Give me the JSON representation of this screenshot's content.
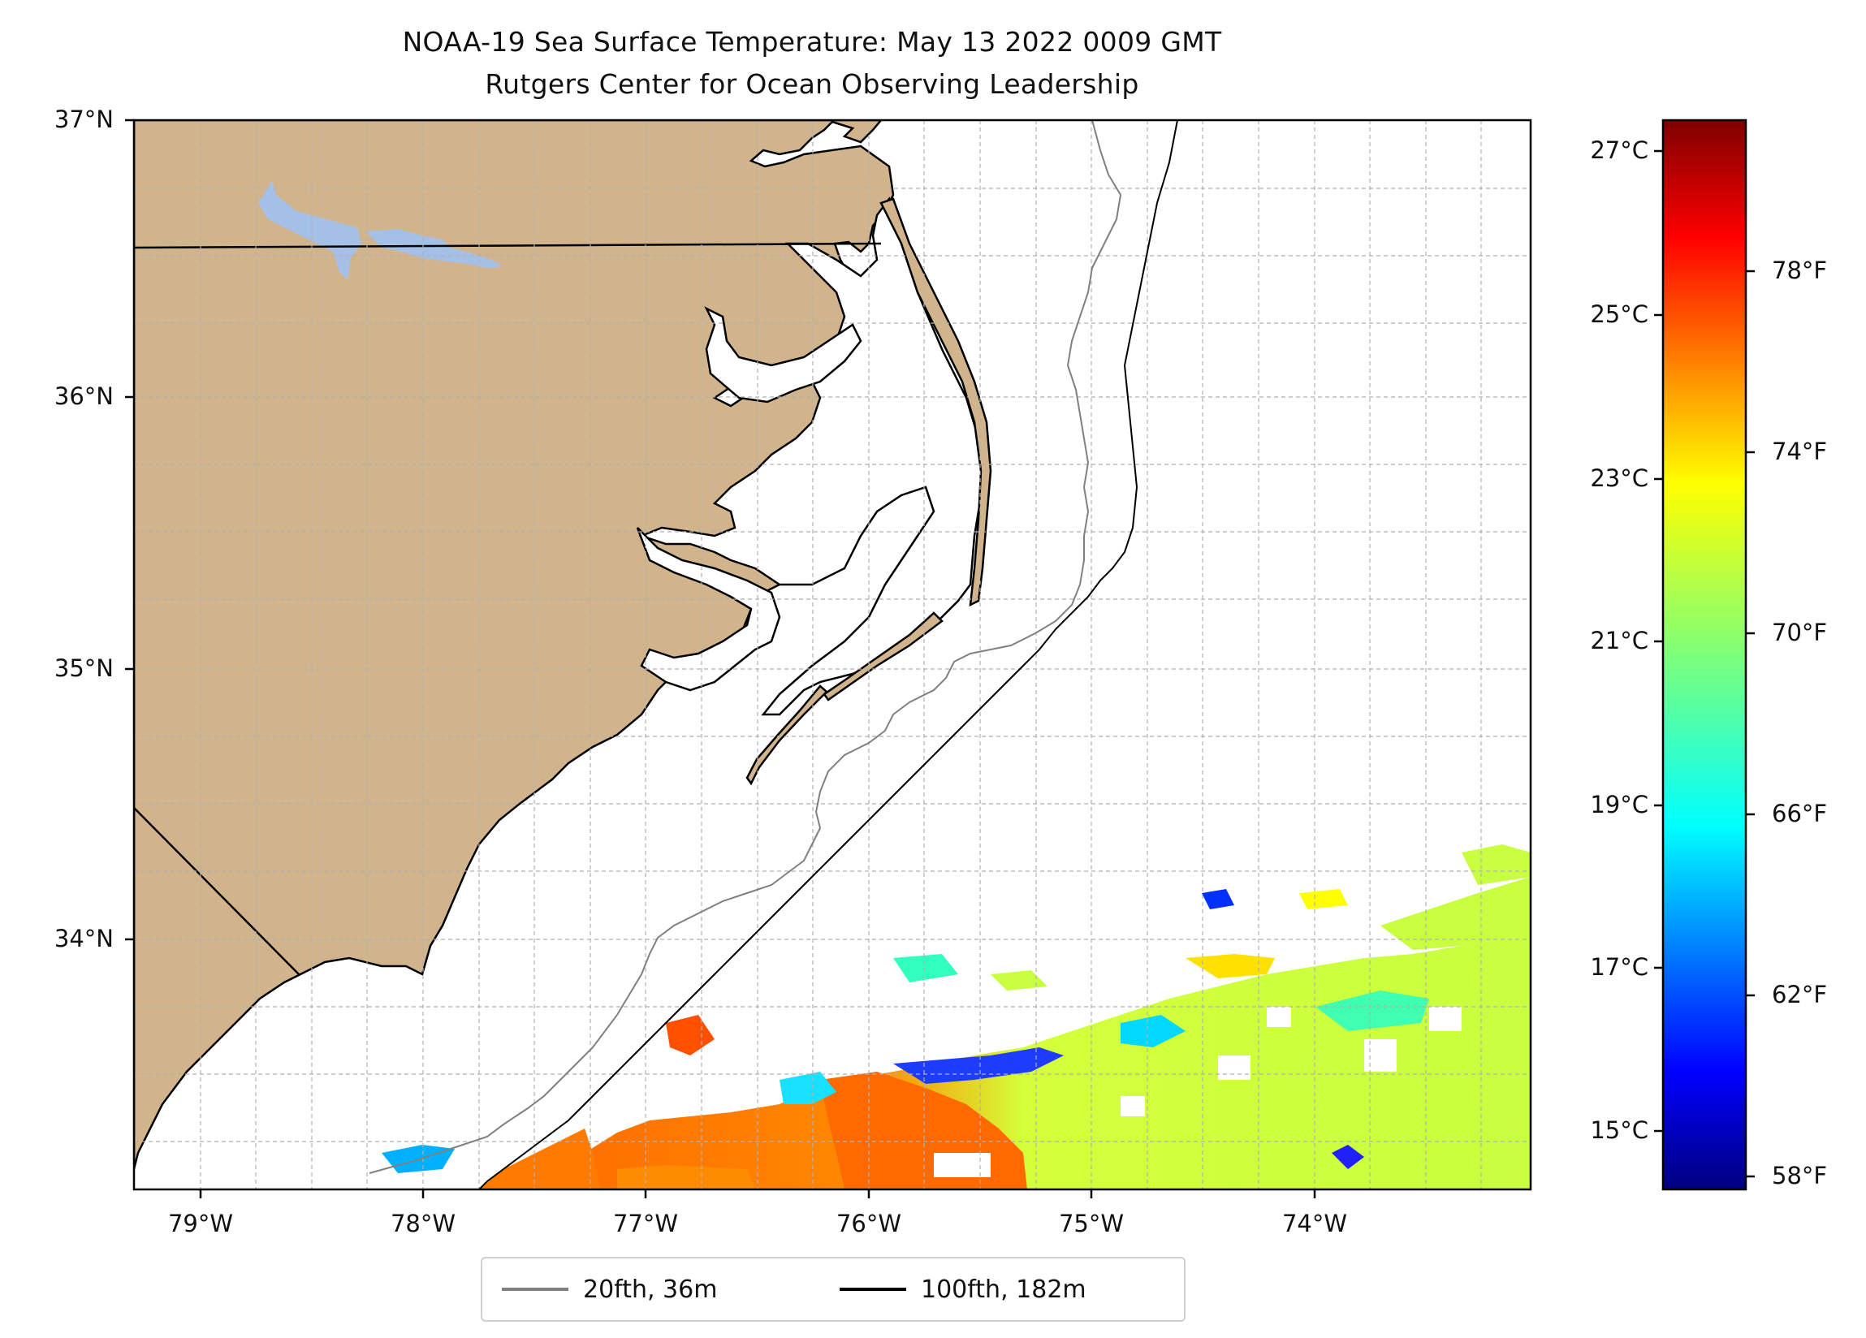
{
  "title": "NOAA-19 Sea Surface Temperature: May 13 2022 0009 GMT",
  "subtitle": "Rutgers Center for Ocean Observing Leadership",
  "lat_labels": [
    "37°N",
    "36°N",
    "35°N",
    "34°N"
  ],
  "lon_labels": [
    "79°W",
    "78°W",
    "77°W",
    "76°W",
    "75°W",
    "74°W"
  ],
  "colorbar": {
    "celsius_labels": [
      "27°C",
      "25°C",
      "23°C",
      "21°C",
      "19°C",
      "17°C",
      "15°C"
    ],
    "fahrenheit_labels": [
      "78°F",
      "74°F",
      "70°F",
      "66°F",
      "62°F",
      "58°F"
    ],
    "colormap": "jet"
  },
  "legend": [
    {
      "label": "20fth, 36m",
      "color": "#808080"
    },
    {
      "label": "100fth, 182m",
      "color": "#000000"
    }
  ],
  "colors": {
    "land": "#d2b48c",
    "lake": "#a4c0e6",
    "isobath_20": "#808080",
    "isobath_100": "#000000",
    "grid": "#b0b0b0"
  }
}
